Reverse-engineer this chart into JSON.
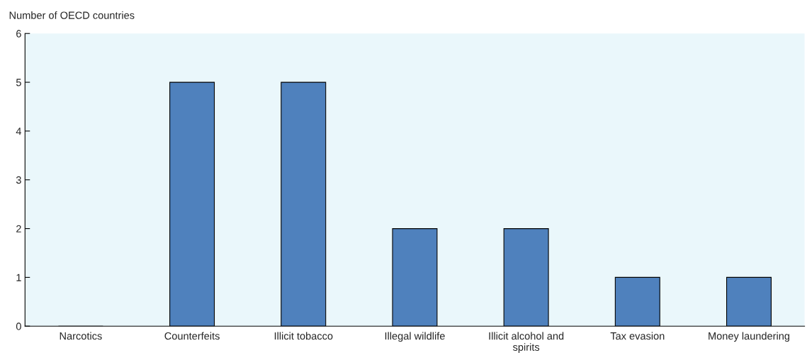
{
  "chart_data": {
    "type": "bar",
    "ylabel": "Number of OECD countries",
    "categories": [
      "Narcotics",
      "Counterfeits",
      "Illicit tobacco",
      "Illegal wildlife",
      "Illicit alcohol and spirits",
      "Tax evasion",
      "Money laundering"
    ],
    "values": [
      0,
      5,
      5,
      2,
      2,
      1,
      1
    ],
    "color": "#4f81bd",
    "ylim": [
      0,
      6
    ],
    "yticks": [
      0,
      1,
      2,
      3,
      4,
      5,
      6
    ],
    "grid": false,
    "legend": false
  }
}
